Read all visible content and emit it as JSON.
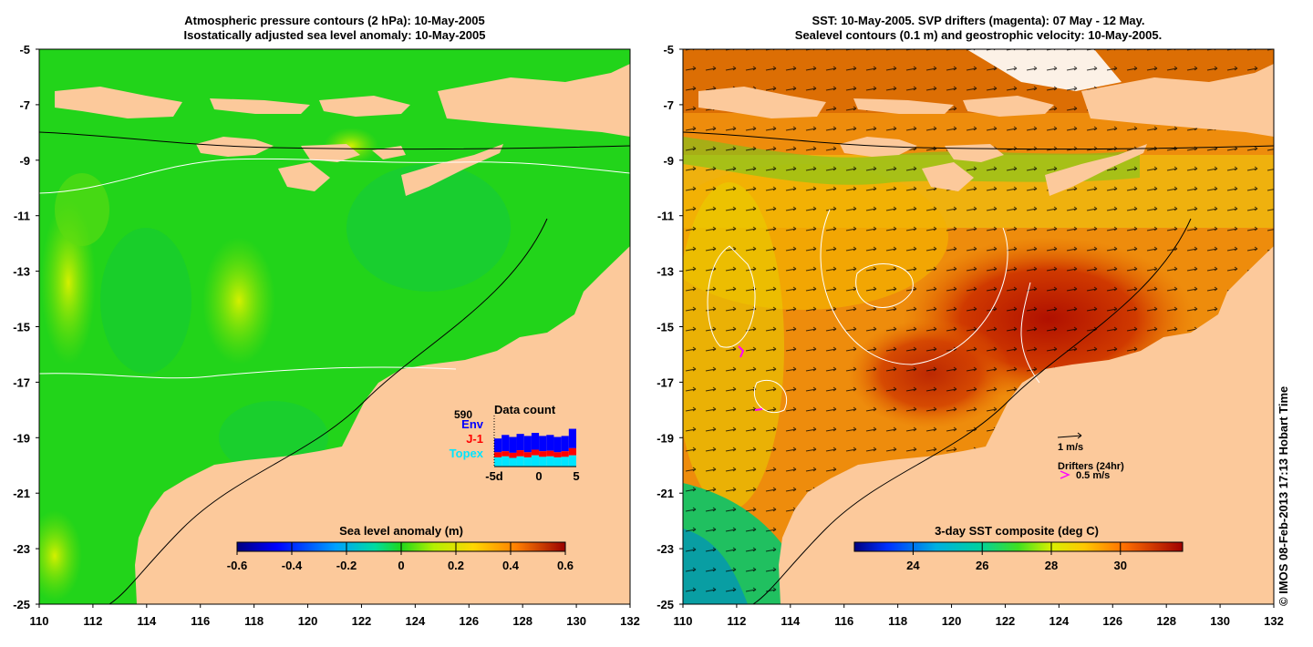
{
  "left_panel": {
    "title_line1": "Atmospheric pressure contours (2 hPa): 10-May-2005",
    "title_line2": "Isostatically adjusted sea level anomaly: 10-May-2005",
    "colorbar": {
      "title": "Sea level anomaly (m)",
      "ticks": [
        "-0.6",
        "-0.4",
        "-0.2",
        "0",
        "0.2",
        "0.4",
        "0.6"
      ],
      "range": [
        -0.6,
        0.6
      ]
    },
    "inset": {
      "title": "Data count",
      "max_label": "590",
      "legend": [
        {
          "label": "Env",
          "color": "#0000ff"
        },
        {
          "label": "J-1",
          "color": "#ff0000"
        },
        {
          "label": "Topex",
          "color": "#00e5ff"
        }
      ],
      "xticks": [
        "-5d",
        "0",
        "5"
      ]
    }
  },
  "right_panel": {
    "title_line1": "SST: 10-May-2005. SVP drifters (magenta): 07 May - 12 May.",
    "title_line2": "Sealevel contours (0.1 m) and geostrophic velocity: 10-May-2005.",
    "colorbar": {
      "title": "3-day SST composite (deg C)",
      "ticks": [
        "24",
        "26",
        "28",
        "30"
      ],
      "range": [
        22.3,
        31.8
      ]
    },
    "velocity_legend": "1 m/s",
    "drifter_legend_title": "Drifters (24hr)",
    "drifter_legend_value": "0.5 m/s",
    "drifter_color": "#ff00ff"
  },
  "axes": {
    "x_ticks": [
      "110",
      "112",
      "114",
      "116",
      "118",
      "120",
      "122",
      "124",
      "126",
      "128",
      "130",
      "132"
    ],
    "y_ticks": [
      "-5",
      "-7",
      "-9",
      "-11",
      "-13",
      "-15",
      "-17",
      "-19",
      "-21",
      "-23",
      "-25"
    ],
    "lon_range": [
      110,
      132
    ],
    "lat_range": [
      -25,
      -5
    ]
  },
  "colors": {
    "land": "#fcc99b",
    "ocean_left": "#22d41a",
    "ocean_right": "#ee8c0c"
  },
  "copyright": "© IMOS 08-Feb-2013 17:13 Hobart Time"
}
